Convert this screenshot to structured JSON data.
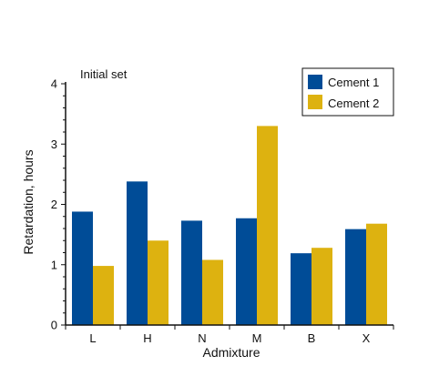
{
  "chart_data": {
    "type": "bar",
    "categories": [
      "L",
      "H",
      "N",
      "M",
      "B",
      "X"
    ],
    "series": [
      {
        "name": "Cement 1",
        "values": [
          1.88,
          2.38,
          1.73,
          1.77,
          1.19,
          1.59
        ],
        "color": "#004c97"
      },
      {
        "name": "Cement 2",
        "values": [
          0.98,
          1.4,
          1.08,
          3.3,
          1.28,
          1.68
        ],
        "color": "#ddb210"
      }
    ],
    "annotation": "Initial set",
    "xlabel": "Admixture",
    "ylabel": "Retardation, hours",
    "ylim": [
      0,
      4
    ],
    "yticks": [
      "0",
      "1",
      "2",
      "3",
      "4"
    ],
    "grid": false,
    "legend_position": "top-right"
  }
}
